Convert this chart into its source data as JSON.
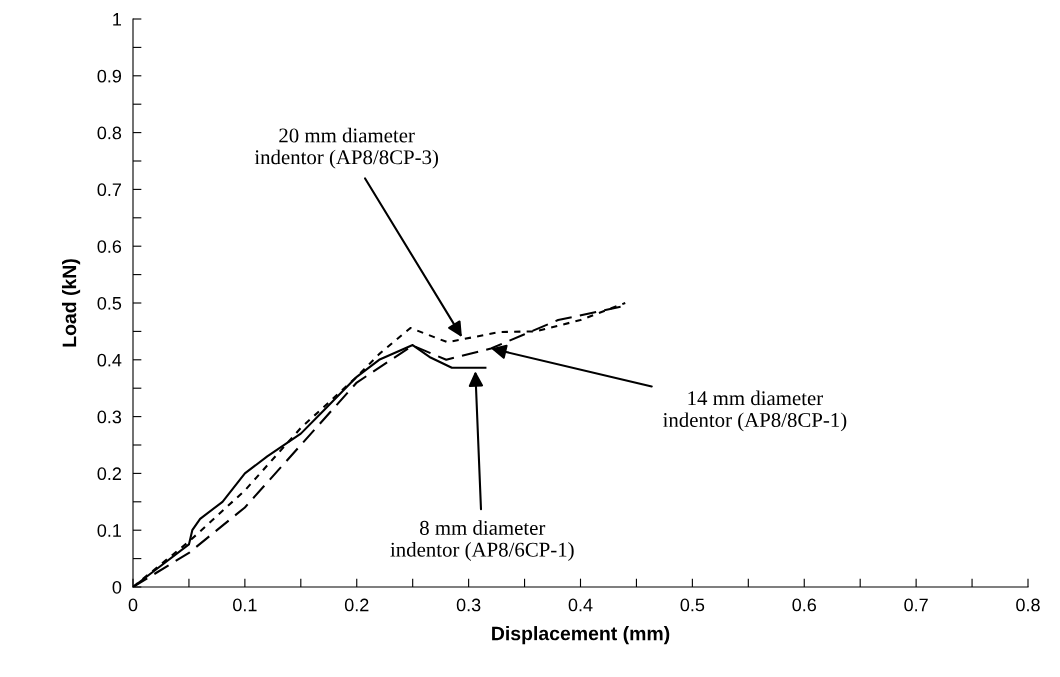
{
  "chart_data": {
    "type": "line",
    "xlabel": "Displacement (mm)",
    "ylabel": "Load (kN)",
    "xlim": [
      0,
      0.8
    ],
    "ylim": [
      0,
      1
    ],
    "xticks": [
      0,
      {
        "value": 0.05,
        "label": null
      },
      0.1,
      {
        "value": 0.15,
        "label": null
      },
      0.2,
      {
        "value": 0.25,
        "label": null
      },
      0.3,
      {
        "value": 0.35,
        "label": null
      },
      0.4,
      {
        "value": 0.45,
        "label": null
      },
      0.5,
      {
        "value": 0.55,
        "label": null
      },
      0.6,
      {
        "value": 0.65,
        "label": null
      },
      0.7,
      {
        "value": 0.75,
        "label": null
      },
      0.8
    ],
    "yticks": [
      0,
      {
        "value": 0.05,
        "label": null
      },
      0.1,
      {
        "value": 0.15,
        "label": null
      },
      0.2,
      {
        "value": 0.25,
        "label": null
      },
      0.3,
      {
        "value": 0.35,
        "label": null
      },
      0.4,
      {
        "value": 0.45,
        "label": null
      },
      0.5,
      {
        "value": 0.55,
        "label": null
      },
      0.6,
      {
        "value": 0.65,
        "label": null
      },
      0.7,
      {
        "value": 0.75,
        "label": null
      },
      0.8,
      {
        "value": 0.85,
        "label": null
      },
      0.9,
      {
        "value": 0.95,
        "label": null
      },
      1
    ],
    "grid": false,
    "marker": "none",
    "series": [
      {
        "color": "#000000",
        "line_style": "solid",
        "x": [
          0,
          0.02,
          0.05,
          0.053,
          0.06,
          0.08,
          0.1,
          0.12,
          0.15,
          0.17,
          0.2,
          0.22,
          0.25,
          0.265,
          0.285,
          0.315
        ],
        "values": [
          0,
          0.03,
          0.075,
          0.1,
          0.12,
          0.15,
          0.2,
          0.23,
          0.27,
          0.31,
          0.37,
          0.4,
          0.426,
          0.405,
          0.386,
          0.386
        ]
      },
      {
        "color": "#000000",
        "line_style": "dashed",
        "x": [
          0,
          0.05,
          0.1,
          0.15,
          0.2,
          0.25,
          0.28,
          0.32,
          0.35,
          0.38,
          0.44
        ],
        "values": [
          0,
          0.06,
          0.14,
          0.25,
          0.36,
          0.425,
          0.4,
          0.42,
          0.445,
          0.47,
          0.495
        ]
      },
      {
        "color": "#000000",
        "line_style": "dotted",
        "x": [
          0,
          0.05,
          0.1,
          0.15,
          0.2,
          0.22,
          0.248,
          0.281,
          0.328,
          0.36,
          0.4,
          0.44
        ],
        "values": [
          0,
          0.08,
          0.17,
          0.28,
          0.37,
          0.41,
          0.456,
          0.431,
          0.449,
          0.45,
          0.47,
          0.5
        ]
      }
    ],
    "annotations": [
      {
        "text": "20 mm diameter\nindentor (AP8/8CP-3)",
        "x": 0.294,
        "y": 0.44
      },
      {
        "text": "14 mm diameter\nindentor (AP8/8CP-1)",
        "x": 0.32,
        "y": 0.42
      },
      {
        "text": "8 mm diameter\nindentor (AP8/6CP-1)",
        "x": 0.306,
        "y": 0.38
      }
    ]
  }
}
